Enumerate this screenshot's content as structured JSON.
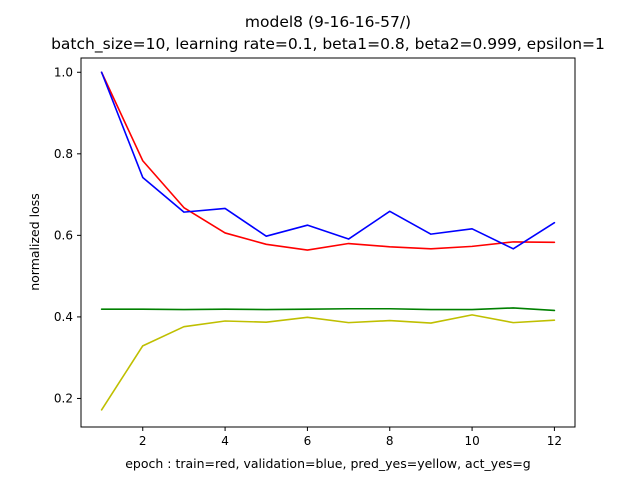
{
  "chart_data": {
    "type": "line",
    "title": "model8 (9-16-16-57/)",
    "subtitle": "batch_size=10, learning rate=0.1, beta1=0.8, beta2=0.999, epsilon=1",
    "xlabel": "epoch : train=red, validation=blue, pred_yes=yellow, act_yes=g",
    "ylabel": "normalized loss",
    "xlim": [
      0.5,
      12.5
    ],
    "ylim": [
      0.13,
      1.035
    ],
    "xticks": [
      2,
      4,
      6,
      8,
      10,
      12
    ],
    "yticks": [
      0.2,
      0.4,
      0.6,
      0.8,
      1.0
    ],
    "ytick_labels": [
      "0.2",
      "0.4",
      "0.6",
      "0.8",
      "1.0"
    ],
    "grid": false,
    "x": [
      1,
      2,
      3,
      4,
      5,
      6,
      7,
      8,
      9,
      10,
      11,
      12
    ],
    "series": [
      {
        "color": "#ff0000",
        "values": [
          1.0,
          0.783,
          0.668,
          0.606,
          0.578,
          0.564,
          0.58,
          0.572,
          0.567,
          0.573,
          0.584,
          0.583
        ]
      },
      {
        "color": "#0000ff",
        "values": [
          1.0,
          0.742,
          0.657,
          0.666,
          0.598,
          0.625,
          0.591,
          0.659,
          0.603,
          0.616,
          0.567,
          0.631
        ]
      },
      {
        "color": "#bfbf00",
        "values": [
          0.172,
          0.329,
          0.376,
          0.39,
          0.387,
          0.399,
          0.386,
          0.391,
          0.385,
          0.405,
          0.386,
          0.392
        ]
      },
      {
        "color": "#008000",
        "values": [
          0.419,
          0.419,
          0.418,
          0.419,
          0.418,
          0.419,
          0.42,
          0.42,
          0.418,
          0.418,
          0.422,
          0.416
        ]
      }
    ]
  }
}
